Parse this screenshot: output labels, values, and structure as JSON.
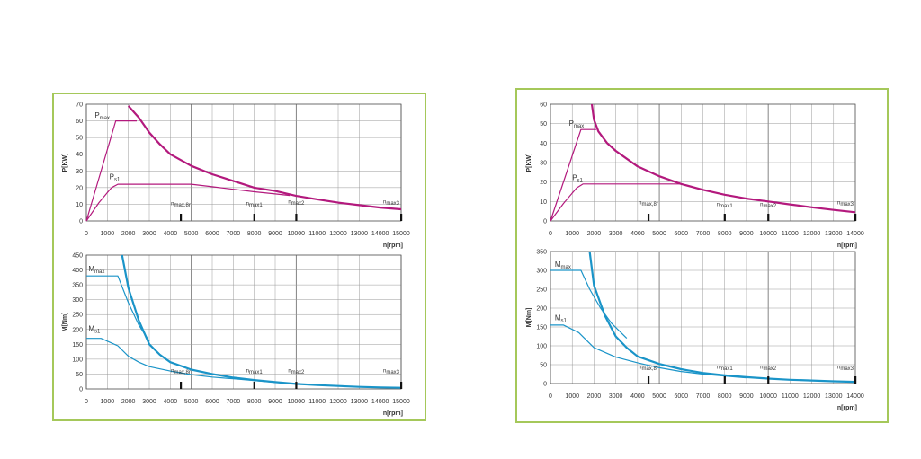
{
  "colors": {
    "power": "#b3197d",
    "torque": "#1a94c8",
    "frame": "#a5c85a",
    "grid": "#999999"
  },
  "chart_data": [
    {
      "type": "line",
      "panel": "left",
      "title": "",
      "xlabel": "n[rpm]",
      "ylabel": "P[KW]",
      "xlim": [
        0,
        15000
      ],
      "ylim": [
        0,
        70
      ],
      "xticks": [
        "0",
        "1000",
        "2000",
        "3000",
        "4000",
        "5000",
        "6000",
        "7000",
        "8000",
        "9000",
        "10000",
        "11000",
        "12000",
        "13000",
        "14000",
        "15000"
      ],
      "yticks": [
        "0",
        "10",
        "20",
        "30",
        "40",
        "50",
        "60",
        "70"
      ],
      "series": [
        {
          "name": "Pmax",
          "color": "power",
          "width": 1.2,
          "points": [
            [
              0,
              0
            ],
            [
              1400,
              60
            ],
            [
              2400,
              60
            ]
          ]
        },
        {
          "name": "",
          "color": "power",
          "width": 2.2,
          "points": [
            [
              2000,
              69
            ],
            [
              2500,
              62
            ],
            [
              3000,
              53
            ],
            [
              3500,
              46
            ],
            [
              4000,
              40
            ],
            [
              5000,
              33
            ],
            [
              6000,
              28
            ],
            [
              7000,
              24
            ],
            [
              8000,
              20
            ],
            [
              9000,
              18
            ],
            [
              10000,
              15
            ],
            [
              11000,
              13
            ],
            [
              12000,
              11
            ],
            [
              13000,
              9.5
            ],
            [
              14000,
              8
            ],
            [
              15000,
              7
            ]
          ]
        },
        {
          "name": "Ps1",
          "color": "power",
          "width": 1.2,
          "points": [
            [
              0,
              0
            ],
            [
              600,
              11
            ],
            [
              1200,
              20
            ],
            [
              1500,
              22
            ],
            [
              5000,
              22
            ],
            [
              6000,
              20.5
            ],
            [
              7000,
              19
            ],
            [
              8000,
              17.5
            ],
            [
              9000,
              16.2
            ],
            [
              9700,
              15.3
            ]
          ]
        }
      ],
      "labels": [
        {
          "text": "P",
          "sub": "max",
          "x": 400,
          "y": 62
        },
        {
          "text": "P",
          "sub": "s1",
          "x": 1100,
          "y": 25
        }
      ],
      "markers": [
        {
          "label": "nmax,8r",
          "x": 4500,
          "h": 4
        },
        {
          "label": "nmax1",
          "x": 8000,
          "h": 4
        },
        {
          "label": "nmax2",
          "x": 10000,
          "h": 5
        },
        {
          "label": "nmax3",
          "x": 15000,
          "h": 5
        }
      ]
    },
    {
      "type": "line",
      "panel": "left",
      "title": "",
      "xlabel": "n[rpm]",
      "ylabel": "M[Nm]",
      "xlim": [
        0,
        15000
      ],
      "ylim": [
        0,
        450
      ],
      "xticks": [
        "0",
        "1000",
        "2000",
        "3000",
        "4000",
        "5000",
        "6000",
        "7000",
        "8000",
        "9000",
        "10000",
        "11000",
        "12000",
        "13000",
        "14000",
        "15000"
      ],
      "yticks": [
        "0",
        "50",
        "100",
        "150",
        "200",
        "250",
        "300",
        "350",
        "400",
        "450"
      ],
      "series": [
        {
          "name": "Mmax",
          "color": "torque",
          "width": 1.2,
          "points": [
            [
              0,
              380
            ],
            [
              1500,
              380
            ],
            [
              2000,
              290
            ],
            [
              2500,
              215
            ],
            [
              3000,
              160
            ]
          ]
        },
        {
          "name": "",
          "color": "torque",
          "width": 2.2,
          "points": [
            [
              1700,
              450
            ],
            [
              2000,
              340
            ],
            [
              2500,
              230
            ],
            [
              3000,
              150
            ],
            [
              3500,
              115
            ],
            [
              4000,
              90
            ],
            [
              5000,
              65
            ],
            [
              6000,
              50
            ],
            [
              7000,
              38
            ],
            [
              8000,
              30
            ],
            [
              9000,
              23
            ],
            [
              10000,
              17
            ],
            [
              11000,
              13
            ],
            [
              12000,
              10
            ],
            [
              13000,
              7
            ],
            [
              14000,
              5
            ],
            [
              15000,
              4
            ]
          ]
        },
        {
          "name": "Ms1",
          "color": "torque",
          "width": 1.2,
          "points": [
            [
              0,
              170
            ],
            [
              700,
              170
            ],
            [
              1500,
              145
            ],
            [
              2000,
              110
            ],
            [
              2500,
              90
            ],
            [
              3000,
              75
            ],
            [
              4000,
              60
            ],
            [
              5000,
              48
            ],
            [
              6000,
              40
            ],
            [
              7000,
              34
            ],
            [
              8000,
              28
            ],
            [
              9000,
              22
            ],
            [
              10000,
              17
            ]
          ]
        }
      ],
      "labels": [
        {
          "text": "M",
          "sub": "max",
          "x": 100,
          "y": 395
        },
        {
          "text": "M",
          "sub": "s1",
          "x": 100,
          "y": 195
        }
      ],
      "markers": [
        {
          "label": "nmax,8r",
          "x": 4500,
          "h": 25
        },
        {
          "label": "nmax1",
          "x": 8000,
          "h": 25
        },
        {
          "label": "nmax2",
          "x": 10000,
          "h": 25
        },
        {
          "label": "nmax3",
          "x": 15000,
          "h": 25
        }
      ]
    },
    {
      "type": "line",
      "panel": "right",
      "title": "",
      "xlabel": "n[rpm]",
      "ylabel": "P[KW]",
      "xlim": [
        0,
        14000
      ],
      "ylim": [
        0,
        60
      ],
      "xticks": [
        "0",
        "1000",
        "2000",
        "3000",
        "4000",
        "5000",
        "6000",
        "7000",
        "8000",
        "9000",
        "10000",
        "11000",
        "12000",
        "13000",
        "14000"
      ],
      "yticks": [
        "0",
        "10",
        "20",
        "30",
        "40",
        "50",
        "60"
      ],
      "series": [
        {
          "name": "Pmax",
          "color": "power",
          "width": 1.2,
          "points": [
            [
              0,
              0
            ],
            [
              1400,
              47
            ],
            [
              2100,
              47
            ]
          ]
        },
        {
          "name": "",
          "color": "power",
          "width": 2.2,
          "points": [
            [
              1900,
              60
            ],
            [
              2000,
              52
            ],
            [
              2200,
              46
            ],
            [
              2600,
              40
            ],
            [
              3000,
              36
            ],
            [
              3500,
              32
            ],
            [
              4000,
              28
            ],
            [
              5000,
              23
            ],
            [
              6000,
              19
            ],
            [
              7000,
              16
            ],
            [
              8000,
              13.5
            ],
            [
              9000,
              11.5
            ],
            [
              10000,
              10
            ],
            [
              11000,
              8.5
            ],
            [
              12000,
              7
            ],
            [
              13000,
              5.7
            ],
            [
              14000,
              4.5
            ]
          ]
        },
        {
          "name": "Ps1",
          "color": "power",
          "width": 1.2,
          "points": [
            [
              0,
              0
            ],
            [
              600,
              9
            ],
            [
              1200,
              17
            ],
            [
              1500,
              19
            ],
            [
              6000,
              19
            ]
          ]
        }
      ],
      "labels": [
        {
          "text": "P",
          "sub": "max",
          "x": 850,
          "y": 49
        },
        {
          "text": "P",
          "sub": "s1",
          "x": 1000,
          "y": 21
        }
      ],
      "markers": [
        {
          "label": "nmax,8r",
          "x": 4500,
          "h": 4
        },
        {
          "label": "nmax1",
          "x": 8000,
          "h": 3
        },
        {
          "label": "nmax2",
          "x": 10000,
          "h": 3
        },
        {
          "label": "nmax3",
          "x": 14000,
          "h": 4
        }
      ]
    },
    {
      "type": "line",
      "panel": "right",
      "title": "",
      "xlabel": "n[rpm]",
      "ylabel": "M[Nm]",
      "xlim": [
        0,
        14000
      ],
      "ylim": [
        0,
        350
      ],
      "xticks": [
        "0",
        "1000",
        "2000",
        "3000",
        "4000",
        "5000",
        "6000",
        "7000",
        "8000",
        "9000",
        "10000",
        "11000",
        "12000",
        "13000",
        "14000"
      ],
      "yticks": [
        "0",
        "50",
        "100",
        "150",
        "200",
        "250",
        "300",
        "350"
      ],
      "series": [
        {
          "name": "Mmax",
          "color": "torque",
          "width": 1.2,
          "points": [
            [
              0,
              300
            ],
            [
              1400,
              300
            ],
            [
              1800,
              250
            ],
            [
              2300,
              200
            ],
            [
              2800,
              160
            ],
            [
              3500,
              120
            ]
          ]
        },
        {
          "name": "",
          "color": "torque",
          "width": 2.2,
          "points": [
            [
              1800,
              350
            ],
            [
              2000,
              260
            ],
            [
              2500,
              180
            ],
            [
              3000,
              125
            ],
            [
              3500,
              95
            ],
            [
              4000,
              72
            ],
            [
              5000,
              52
            ],
            [
              6000,
              38
            ],
            [
              7000,
              28
            ],
            [
              8000,
              22
            ],
            [
              9000,
              17
            ],
            [
              10000,
              13
            ],
            [
              11000,
              10
            ],
            [
              12000,
              8
            ],
            [
              13000,
              6
            ],
            [
              14000,
              4.5
            ]
          ]
        },
        {
          "name": "Ms1",
          "color": "torque",
          "width": 1.2,
          "points": [
            [
              0,
              155
            ],
            [
              600,
              155
            ],
            [
              1300,
              135
            ],
            [
              2000,
              95
            ],
            [
              3000,
              70
            ],
            [
              4000,
              55
            ],
            [
              5000,
              42
            ],
            [
              6000,
              32
            ],
            [
              7000,
              25
            ],
            [
              8000,
              20
            ],
            [
              9000,
              15
            ]
          ]
        }
      ],
      "labels": [
        {
          "text": "M",
          "sub": "max",
          "x": 200,
          "y": 310
        },
        {
          "text": "M",
          "sub": "s1",
          "x": 200,
          "y": 168
        }
      ],
      "markers": [
        {
          "label": "nmax,8r",
          "x": 4500,
          "h": 15
        },
        {
          "label": "nmax1",
          "x": 8000,
          "h": 15
        },
        {
          "label": "nmax2",
          "x": 10000,
          "h": 15
        },
        {
          "label": "nmax3",
          "x": 14000,
          "h": 15
        }
      ]
    }
  ]
}
